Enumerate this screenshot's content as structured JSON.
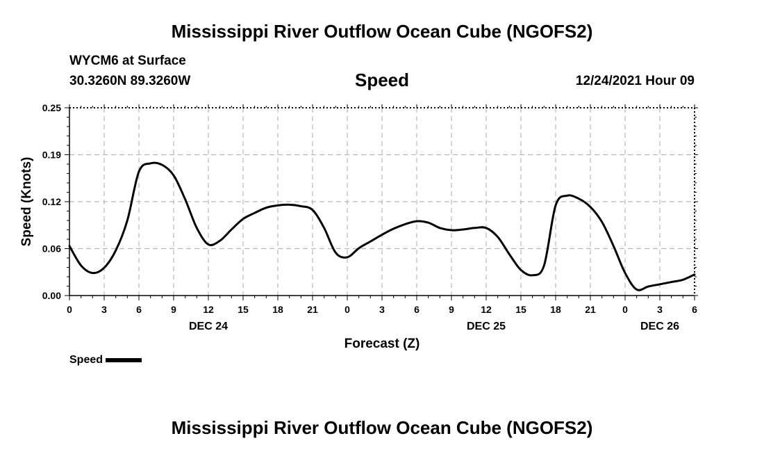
{
  "chart_data": {
    "type": "line",
    "title": "Mississippi River Outflow Ocean Cube (NGOFS2)",
    "footer_title": "Mississippi River Outflow Ocean Cube (NGOFS2)",
    "station": "WYCM6 at Surface",
    "location": "30.3260N  89.3260W",
    "variable_title": "Speed",
    "timestamp": "12/24/2021 Hour 09",
    "xlabel": "Forecast (Z)",
    "ylabel": "Speed (Knots)",
    "ylim": [
      0,
      0.25
    ],
    "xlim": [
      0,
      54
    ],
    "grid": true,
    "y_ticks": [
      {
        "value": 0,
        "label": "0.00"
      },
      {
        "value": 0.0625,
        "label": "0.06"
      },
      {
        "value": 0.125,
        "label": "0.12"
      },
      {
        "value": 0.1875,
        "label": "0.19"
      },
      {
        "value": 0.25,
        "label": "0.25"
      }
    ],
    "x_ticks": [
      {
        "value": 0,
        "label": "0"
      },
      {
        "value": 3,
        "label": "3"
      },
      {
        "value": 6,
        "label": "6"
      },
      {
        "value": 9,
        "label": "9"
      },
      {
        "value": 12,
        "label": "12"
      },
      {
        "value": 15,
        "label": "15"
      },
      {
        "value": 18,
        "label": "18"
      },
      {
        "value": 21,
        "label": "21"
      },
      {
        "value": 24,
        "label": "0"
      },
      {
        "value": 27,
        "label": "3"
      },
      {
        "value": 30,
        "label": "6"
      },
      {
        "value": 33,
        "label": "9"
      },
      {
        "value": 36,
        "label": "12"
      },
      {
        "value": 39,
        "label": "15"
      },
      {
        "value": 42,
        "label": "18"
      },
      {
        "value": 45,
        "label": "21"
      },
      {
        "value": 48,
        "label": "0"
      },
      {
        "value": 51,
        "label": "3"
      },
      {
        "value": 54,
        "label": "6"
      }
    ],
    "day_labels": [
      {
        "value": 12,
        "label": "DEC 24"
      },
      {
        "value": 36,
        "label": "DEC 25"
      },
      {
        "value": 51,
        "label": "DEC 26"
      }
    ],
    "legend": [
      {
        "name": "Speed",
        "color": "#000000"
      }
    ],
    "series": [
      {
        "name": "Speed",
        "x": [
          0,
          1,
          2,
          3,
          4,
          5,
          6,
          7,
          8,
          9,
          10,
          11,
          12,
          13,
          14,
          15,
          16,
          17,
          18,
          19,
          20,
          21,
          22,
          23,
          24,
          25,
          26,
          27,
          28,
          29,
          30,
          31,
          32,
          33,
          34,
          35,
          36,
          37,
          38,
          39,
          40,
          41,
          42,
          43,
          44,
          45,
          46,
          47,
          48,
          49,
          50,
          51,
          52,
          53,
          54
        ],
        "values": [
          0.066,
          0.04,
          0.03,
          0.037,
          0.06,
          0.1,
          0.165,
          0.176,
          0.174,
          0.16,
          0.128,
          0.09,
          0.068,
          0.073,
          0.088,
          0.102,
          0.11,
          0.117,
          0.12,
          0.121,
          0.119,
          0.114,
          0.09,
          0.057,
          0.051,
          0.063,
          0.072,
          0.081,
          0.089,
          0.095,
          0.099,
          0.097,
          0.09,
          0.087,
          0.088,
          0.09,
          0.09,
          0.078,
          0.055,
          0.034,
          0.027,
          0.04,
          0.12,
          0.133,
          0.129,
          0.118,
          0.098,
          0.066,
          0.03,
          0.008,
          0.012,
          0.015,
          0.018,
          0.021,
          0.028
        ]
      }
    ]
  }
}
